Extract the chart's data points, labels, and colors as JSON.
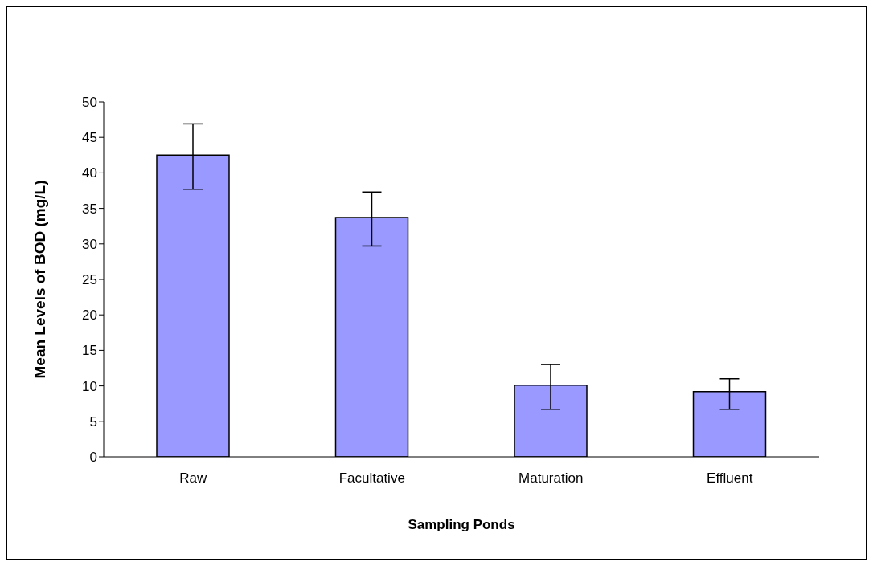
{
  "chart_data": {
    "type": "bar",
    "xlabel": "Sampling Ponds",
    "ylabel": "Mean Levels of BOD (mg/L)",
    "categories": [
      "Raw",
      "Facultative",
      "Maturation",
      "Effluent"
    ],
    "values": [
      42.5,
      33.7,
      10.1,
      9.2
    ],
    "errors": [
      [
        37.7,
        46.9
      ],
      [
        29.7,
        37.3
      ],
      [
        6.7,
        13.0
      ],
      [
        6.7,
        11.0
      ]
    ],
    "color": "#9999ff",
    "ylim": [
      0,
      50
    ],
    "yticks": [
      0,
      5,
      10,
      15,
      20,
      25,
      30,
      35,
      40,
      45,
      50
    ],
    "grid": false,
    "legend": false
  }
}
